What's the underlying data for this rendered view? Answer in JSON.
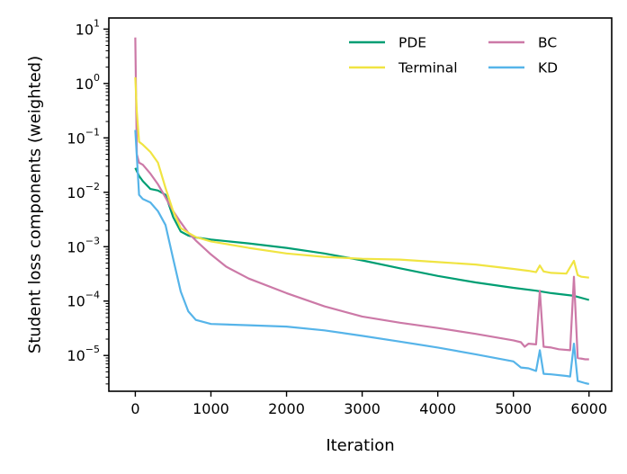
{
  "chart_data": {
    "type": "line",
    "xlabel": "Iteration",
    "ylabel": "Student loss components (weighted)",
    "xlim": [
      -350,
      6300
    ],
    "ylim": [
      2.2e-06,
      16
    ],
    "yscale": "log",
    "grid": false,
    "legend_placement": "top-right",
    "x_ticks": [
      {
        "value": 0,
        "label": "0"
      },
      {
        "value": 1000,
        "label": "1000"
      },
      {
        "value": 2000,
        "label": "2000"
      },
      {
        "value": 3000,
        "label": "3000"
      },
      {
        "value": 4000,
        "label": "4000"
      },
      {
        "value": 5000,
        "label": "5000"
      },
      {
        "value": 6000,
        "label": "6000"
      }
    ],
    "y_ticks": [
      {
        "value": 1e-05,
        "base": "10",
        "exp": "−5"
      },
      {
        "value": 0.0001,
        "base": "10",
        "exp": "−4"
      },
      {
        "value": 0.001,
        "base": "10",
        "exp": "−3"
      },
      {
        "value": 0.01,
        "base": "10",
        "exp": "−2"
      },
      {
        "value": 0.1,
        "base": "10",
        "exp": "−1"
      },
      {
        "value": 1,
        "base": "10",
        "exp": "0"
      },
      {
        "value": 10,
        "base": "10",
        "exp": "1"
      }
    ],
    "series": [
      {
        "name": "PDE",
        "color": "#009E73",
        "points": [
          [
            0,
            0.028
          ],
          [
            50,
            0.02
          ],
          [
            100,
            0.016
          ],
          [
            200,
            0.0115
          ],
          [
            300,
            0.0108
          ],
          [
            400,
            0.009
          ],
          [
            500,
            0.0035
          ],
          [
            600,
            0.0019
          ],
          [
            700,
            0.0016
          ],
          [
            800,
            0.00148
          ],
          [
            1000,
            0.00135
          ],
          [
            1500,
            0.00115
          ],
          [
            2000,
            0.00095
          ],
          [
            2500,
            0.00075
          ],
          [
            3000,
            0.00056
          ],
          [
            3500,
            0.0004
          ],
          [
            4000,
            0.00029
          ],
          [
            4500,
            0.00022
          ],
          [
            5000,
            0.000175
          ],
          [
            5300,
            0.000155
          ],
          [
            5500,
            0.00014
          ],
          [
            5800,
            0.000125
          ],
          [
            6000,
            0.000105
          ]
        ]
      },
      {
        "name": "BC",
        "color": "#CC79A7",
        "points": [
          [
            0,
            7.0
          ],
          [
            20,
            0.05
          ],
          [
            50,
            0.035
          ],
          [
            100,
            0.032
          ],
          [
            200,
            0.022
          ],
          [
            300,
            0.014
          ],
          [
            400,
            0.008
          ],
          [
            500,
            0.0045
          ],
          [
            600,
            0.0028
          ],
          [
            700,
            0.0018
          ],
          [
            800,
            0.0013
          ],
          [
            1000,
            0.00072
          ],
          [
            1200,
            0.00043
          ],
          [
            1500,
            0.00026
          ],
          [
            2000,
            0.00014
          ],
          [
            2500,
            8e-05
          ],
          [
            3000,
            5.2e-05
          ],
          [
            3500,
            4e-05
          ],
          [
            4000,
            3.2e-05
          ],
          [
            4500,
            2.5e-05
          ],
          [
            5000,
            1.9e-05
          ],
          [
            5100,
            1.75e-05
          ],
          [
            5150,
            1.45e-05
          ],
          [
            5200,
            1.65e-05
          ],
          [
            5300,
            1.6e-05
          ],
          [
            5350,
            0.000155
          ],
          [
            5400,
            1.45e-05
          ],
          [
            5500,
            1.4e-05
          ],
          [
            5600,
            1.3e-05
          ],
          [
            5750,
            1.25e-05
          ],
          [
            5800,
            0.00028
          ],
          [
            5850,
            9e-06
          ],
          [
            5950,
            8.5e-06
          ],
          [
            6000,
            8.5e-06
          ]
        ]
      },
      {
        "name": "Terminal",
        "color": "#F0E442",
        "points": [
          [
            0,
            1.3
          ],
          [
            20,
            0.3
          ],
          [
            50,
            0.085
          ],
          [
            100,
            0.075
          ],
          [
            200,
            0.055
          ],
          [
            300,
            0.035
          ],
          [
            400,
            0.012
          ],
          [
            500,
            0.0045
          ],
          [
            600,
            0.0022
          ],
          [
            700,
            0.0018
          ],
          [
            800,
            0.0015
          ],
          [
            1000,
            0.00125
          ],
          [
            1500,
            0.00095
          ],
          [
            2000,
            0.00075
          ],
          [
            2500,
            0.00065
          ],
          [
            3000,
            0.0006
          ],
          [
            3500,
            0.00058
          ],
          [
            4000,
            0.00052
          ],
          [
            4500,
            0.00047
          ],
          [
            5000,
            0.00039
          ],
          [
            5200,
            0.00036
          ],
          [
            5300,
            0.00034
          ],
          [
            5350,
            0.00045
          ],
          [
            5400,
            0.00035
          ],
          [
            5500,
            0.00033
          ],
          [
            5700,
            0.00032
          ],
          [
            5800,
            0.00055
          ],
          [
            5850,
            0.0003
          ],
          [
            5900,
            0.00028
          ],
          [
            6000,
            0.00027
          ]
        ]
      },
      {
        "name": "KD",
        "color": "#56B4E9",
        "points": [
          [
            0,
            0.14
          ],
          [
            50,
            0.009
          ],
          [
            100,
            0.0075
          ],
          [
            200,
            0.0065
          ],
          [
            300,
            0.0045
          ],
          [
            400,
            0.0025
          ],
          [
            500,
            0.0006
          ],
          [
            600,
            0.00015
          ],
          [
            700,
            6.5e-05
          ],
          [
            800,
            4.5e-05
          ],
          [
            1000,
            3.8e-05
          ],
          [
            1500,
            3.6e-05
          ],
          [
            2000,
            3.4e-05
          ],
          [
            2500,
            2.9e-05
          ],
          [
            3000,
            2.3e-05
          ],
          [
            3500,
            1.8e-05
          ],
          [
            4000,
            1.4e-05
          ],
          [
            4500,
            1.05e-05
          ],
          [
            5000,
            7.8e-06
          ],
          [
            5100,
            6e-06
          ],
          [
            5200,
            5.8e-06
          ],
          [
            5300,
            5.2e-06
          ],
          [
            5350,
            1.25e-05
          ],
          [
            5400,
            4.6e-06
          ],
          [
            5500,
            4.5e-06
          ],
          [
            5700,
            4.2e-06
          ],
          [
            5750,
            4.1e-06
          ],
          [
            5800,
            1.65e-05
          ],
          [
            5850,
            3.4e-06
          ],
          [
            5950,
            3.1e-06
          ],
          [
            6000,
            3e-06
          ]
        ]
      }
    ]
  }
}
